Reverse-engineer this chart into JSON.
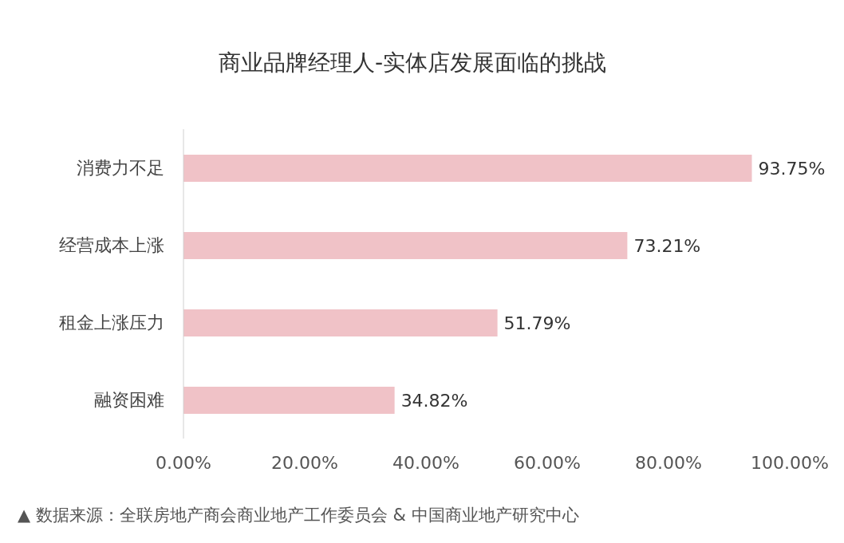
{
  "chart_data": {
    "type": "bar",
    "orientation": "horizontal",
    "title": "商业品牌经理人-实体店发展面临的挑战",
    "categories": [
      "消费力不足",
      "经营成本上涨",
      "租金上涨压力",
      "融资困难"
    ],
    "values": [
      93.75,
      73.21,
      51.79,
      34.82
    ],
    "value_labels": [
      "93.75%",
      "73.21%",
      "51.79%",
      "34.82%"
    ],
    "color": "#f0c2c7",
    "xlim": [
      0,
      100
    ],
    "xticks": [
      {
        "value": 0,
        "label": "0.00%"
      },
      {
        "value": 20,
        "label": "20.00%"
      },
      {
        "value": 40,
        "label": "40.00%"
      },
      {
        "value": 60,
        "label": "60.00%"
      },
      {
        "value": 80,
        "label": "80.00%"
      },
      {
        "value": 100,
        "label": "100.00%"
      }
    ],
    "grid": false,
    "legend": false,
    "annotations": [
      "▲ 数据来源：全联房地产商会商业地产工作委员会 & 中国商业地产研究中心"
    ]
  }
}
